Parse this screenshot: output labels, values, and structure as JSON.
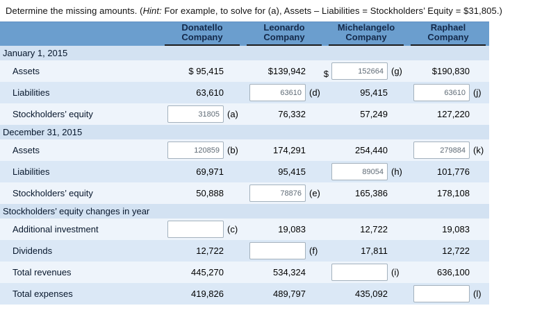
{
  "page": {
    "title_part1": "Determine the missing amounts. (",
    "title_hint": "Hint:",
    "title_part2": " For example, to solve for (a), Assets – Liabilities = Stockholders’ Equity = $31,805.)"
  },
  "colors": {
    "header_bg": "#6b9ece",
    "header_text": "#13294a",
    "section_row_bg": "#d3e2f2",
    "row_light": "#eef4fb",
    "row_mid": "#dbe8f6",
    "input_border": "#a3b1bd",
    "input_text": "#5f6b76"
  },
  "table": {
    "header": {
      "companies": [
        {
          "line1": "Donatello",
          "line2": "Company"
        },
        {
          "line1": "Leonardo",
          "line2": "Company"
        },
        {
          "line1": "Michelangelo",
          "line2": "Company"
        },
        {
          "line1": "Raphael",
          "line2": "Company"
        }
      ]
    },
    "rows": [
      {
        "type": "section",
        "label": "January 1, 2015"
      },
      {
        "type": "data",
        "label": "Assets",
        "cells": [
          {
            "text": "$ 95,415"
          },
          {
            "text": "$139,942"
          },
          {
            "input": true,
            "prefix": "$",
            "value": "152664",
            "letter": "(g)"
          },
          {
            "text": "$190,830"
          }
        ]
      },
      {
        "type": "data",
        "label": "Liabilities",
        "cells": [
          {
            "text": "63,610"
          },
          {
            "input": true,
            "value": "63610",
            "letter": "(d)"
          },
          {
            "text": "95,415"
          },
          {
            "input": true,
            "value": "63610",
            "letter": "(j)"
          }
        ]
      },
      {
        "type": "data",
        "label": "Stockholders’ equity",
        "cells": [
          {
            "input": true,
            "value": "31805",
            "letter": "(a)"
          },
          {
            "text": "76,332"
          },
          {
            "text": "57,249"
          },
          {
            "text": "127,220"
          }
        ]
      },
      {
        "type": "section",
        "label": "December 31, 2015"
      },
      {
        "type": "data",
        "label": "Assets",
        "cells": [
          {
            "input": true,
            "value": "120859",
            "letter": "(b)"
          },
          {
            "text": "174,291"
          },
          {
            "text": "254,440"
          },
          {
            "input": true,
            "value": "279884",
            "letter": "(k)"
          }
        ]
      },
      {
        "type": "data",
        "label": "Liabilities",
        "cells": [
          {
            "text": "69,971"
          },
          {
            "text": "95,415"
          },
          {
            "input": true,
            "value": "89054",
            "letter": "(h)"
          },
          {
            "text": "101,776"
          }
        ]
      },
      {
        "type": "data",
        "label": "Stockholders’ equity",
        "cells": [
          {
            "text": "50,888"
          },
          {
            "input": true,
            "value": "78876",
            "letter": "(e)"
          },
          {
            "text": "165,386"
          },
          {
            "text": "178,108"
          }
        ]
      },
      {
        "type": "section",
        "label": "Stockholders’ equity changes in year"
      },
      {
        "type": "data",
        "label": "Additional investment",
        "cells": [
          {
            "input": true,
            "value": "",
            "letter": "(c)"
          },
          {
            "text": "19,083"
          },
          {
            "text": "12,722"
          },
          {
            "text": "19,083"
          }
        ]
      },
      {
        "type": "data",
        "label": "Dividends",
        "cells": [
          {
            "text": "12,722"
          },
          {
            "input": true,
            "value": "",
            "letter": "(f)"
          },
          {
            "text": "17,811"
          },
          {
            "text": "12,722"
          }
        ]
      },
      {
        "type": "data",
        "label": "Total revenues",
        "cells": [
          {
            "text": "445,270"
          },
          {
            "text": "534,324"
          },
          {
            "input": true,
            "value": "",
            "letter": "(i)"
          },
          {
            "text": "636,100"
          }
        ]
      },
      {
        "type": "data",
        "label": "Total expenses",
        "cells": [
          {
            "text": "419,826"
          },
          {
            "text": "489,797"
          },
          {
            "text": "435,092"
          },
          {
            "input": true,
            "value": "",
            "letter": "(l)"
          }
        ]
      }
    ]
  }
}
